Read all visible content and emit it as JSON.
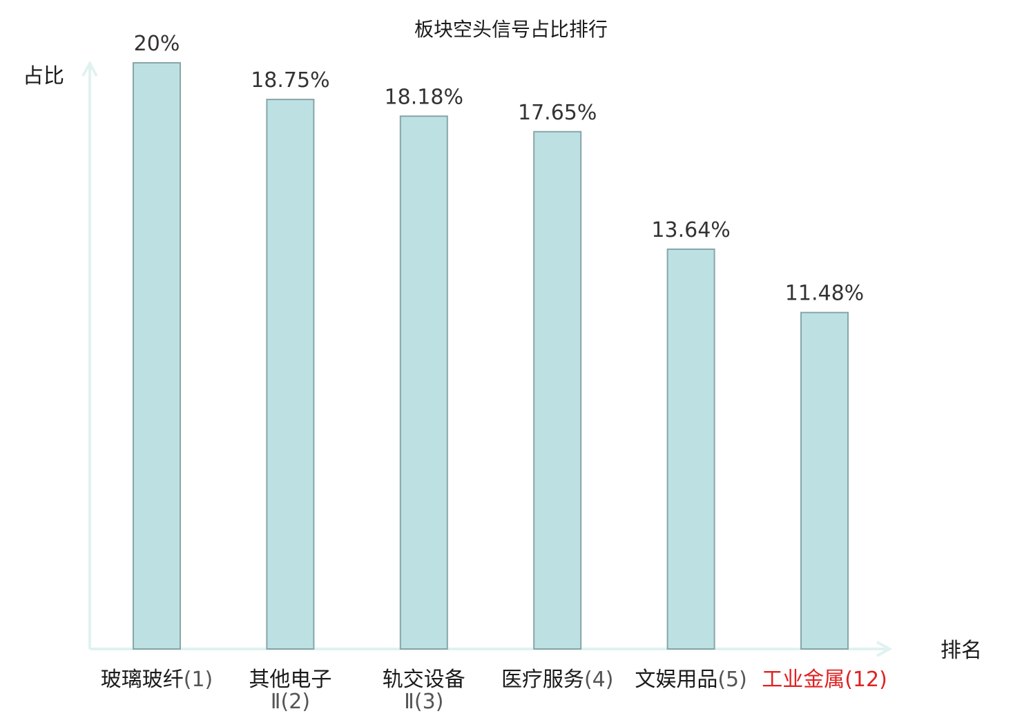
{
  "chart_data": {
    "type": "bar",
    "title": "板块空头信号占比排行",
    "ylabel": "占比",
    "xlabel": "排名",
    "ylim": [
      0,
      20
    ],
    "grid": false,
    "categories": [
      {
        "name": "玻璃玻纤",
        "rank": "(1)"
      },
      {
        "name": "其他电子Ⅱ",
        "rank": "(2)"
      },
      {
        "name": "轨交设备Ⅱ",
        "rank": "(3)"
      },
      {
        "name": "医疗服务",
        "rank": "(4)"
      },
      {
        "name": "文娱用品",
        "rank": "(5)"
      },
      {
        "name": "工业金属",
        "rank": "(12)",
        "highlight": true
      }
    ],
    "values": [
      20,
      18.75,
      18.18,
      17.65,
      13.64,
      11.48
    ],
    "value_labels": [
      "20%",
      "18.75%",
      "18.18%",
      "17.65%",
      "13.64%",
      "11.48%"
    ],
    "colors": {
      "bar_fill": "#bde0e3",
      "bar_stroke": "#86a6a8",
      "axis": "#e0f2f0",
      "highlight": "#e02020"
    }
  }
}
